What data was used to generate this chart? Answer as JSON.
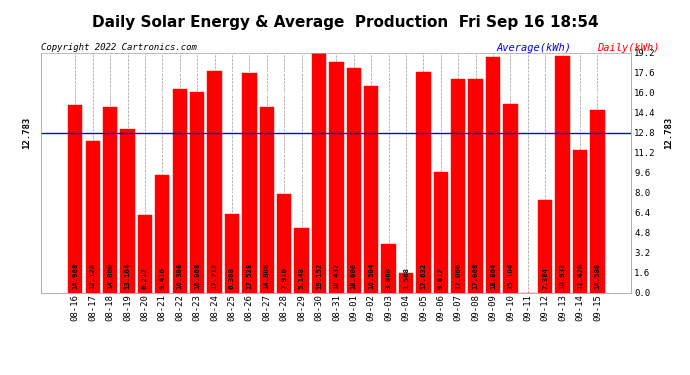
{
  "title": "Daily Solar Energy & Average  Production  Fri Sep 16 18:54",
  "copyright": "Copyright 2022 Cartronics.com",
  "legend_average": "Average(kWh)",
  "legend_daily": "Daily(kWh)",
  "average_value": 12.783,
  "average_label": "12.783",
  "categories": [
    "08-16",
    "08-17",
    "08-18",
    "08-19",
    "08-20",
    "08-21",
    "08-22",
    "08-23",
    "08-24",
    "08-25",
    "08-26",
    "08-27",
    "08-28",
    "08-29",
    "08-30",
    "08-31",
    "09-01",
    "09-02",
    "09-03",
    "09-04",
    "09-05",
    "09-06",
    "09-07",
    "09-08",
    "09-09",
    "09-10",
    "09-11",
    "09-12",
    "09-13",
    "09-14",
    "09-15"
  ],
  "values": [
    14.968,
    12.128,
    14.86,
    13.104,
    6.212,
    9.416,
    16.308,
    16.068,
    17.712,
    6.308,
    17.528,
    14.808,
    7.916,
    5.148,
    19.152,
    18.432,
    18.0,
    16.504,
    3.868,
    1.568,
    17.632,
    9.612,
    17.06,
    17.068,
    18.864,
    15.104,
    0.0,
    7.384,
    18.932,
    11.428,
    14.58
  ],
  "bar_color": "#ff0000",
  "average_line_color": "#0000ff",
  "ylim": [
    0,
    19.2
  ],
  "yticks": [
    0.0,
    1.6,
    3.2,
    4.8,
    6.4,
    8.0,
    9.6,
    11.2,
    12.8,
    14.4,
    16.0,
    17.6,
    19.2
  ],
  "background_color": "#ffffff",
  "grid_color": "#999999",
  "title_fontsize": 11,
  "tick_fontsize": 6.5,
  "value_fontsize": 5.2,
  "label_fontsize": 6.5,
  "copyright_fontsize": 6.5,
  "legend_fontsize": 7.5
}
